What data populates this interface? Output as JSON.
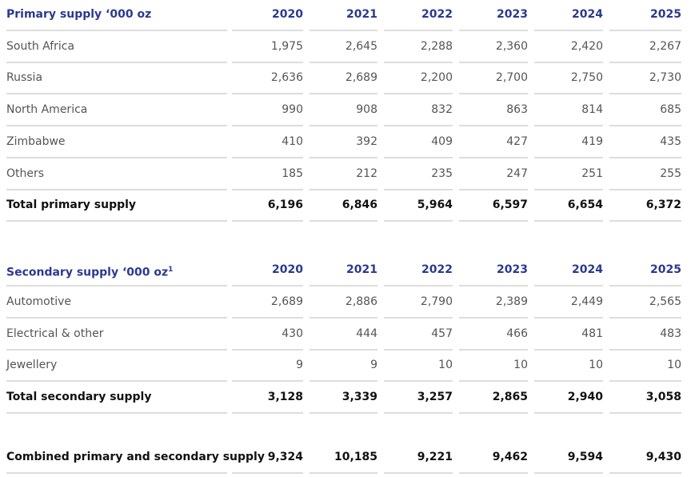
{
  "sections": [
    {
      "title": "Primary supply ‘000 oz",
      "footnote_marker": null,
      "years": [
        "2020",
        "2021",
        "2022",
        "2023",
        "2024",
        "2025"
      ],
      "rows": [
        {
          "label": "South Africa",
          "values": [
            "1,975",
            "2,645",
            "2,288",
            "2,360",
            "2,420",
            "2,267"
          ]
        },
        {
          "label": "Russia",
          "values": [
            "2,636",
            "2,689",
            "2,200",
            "2,700",
            "2,750",
            "2,730"
          ]
        },
        {
          "label": "North America",
          "values": [
            "990",
            "908",
            "832",
            "863",
            "814",
            "685"
          ]
        },
        {
          "label": "Zimbabwe",
          "values": [
            "410",
            "392",
            "409",
            "427",
            "419",
            "435"
          ]
        },
        {
          "label": "Others",
          "values": [
            "185",
            "212",
            "235",
            "247",
            "251",
            "255"
          ]
        }
      ],
      "total": {
        "label": "Total primary supply",
        "values": [
          "6,196",
          "6,846",
          "5,964",
          "6,597",
          "6,654",
          "6,372"
        ]
      }
    },
    {
      "title": "Secondary supply ‘000 oz",
      "footnote_marker": "1",
      "years": [
        "2020",
        "2021",
        "2022",
        "2023",
        "2024",
        "2025"
      ],
      "rows": [
        {
          "label": "Automotive",
          "values": [
            "2,689",
            "2,886",
            "2,790",
            "2,389",
            "2,449",
            "2,565"
          ]
        },
        {
          "label": "Electrical & other",
          "values": [
            "430",
            "444",
            "457",
            "466",
            "481",
            "483"
          ]
        },
        {
          "label": "Jewellery",
          "values": [
            "9",
            "9",
            "10",
            "10",
            "10",
            "10"
          ]
        }
      ],
      "total": {
        "label": "Total secondary supply",
        "values": [
          "3,128",
          "3,339",
          "3,257",
          "2,865",
          "2,940",
          "3,058"
        ]
      }
    }
  ],
  "combined": {
    "label": "Combined primary and secondary supply",
    "values": [
      "9,324",
      "10,185",
      "9,221",
      "9,462",
      "9,594",
      "9,430"
    ]
  }
}
